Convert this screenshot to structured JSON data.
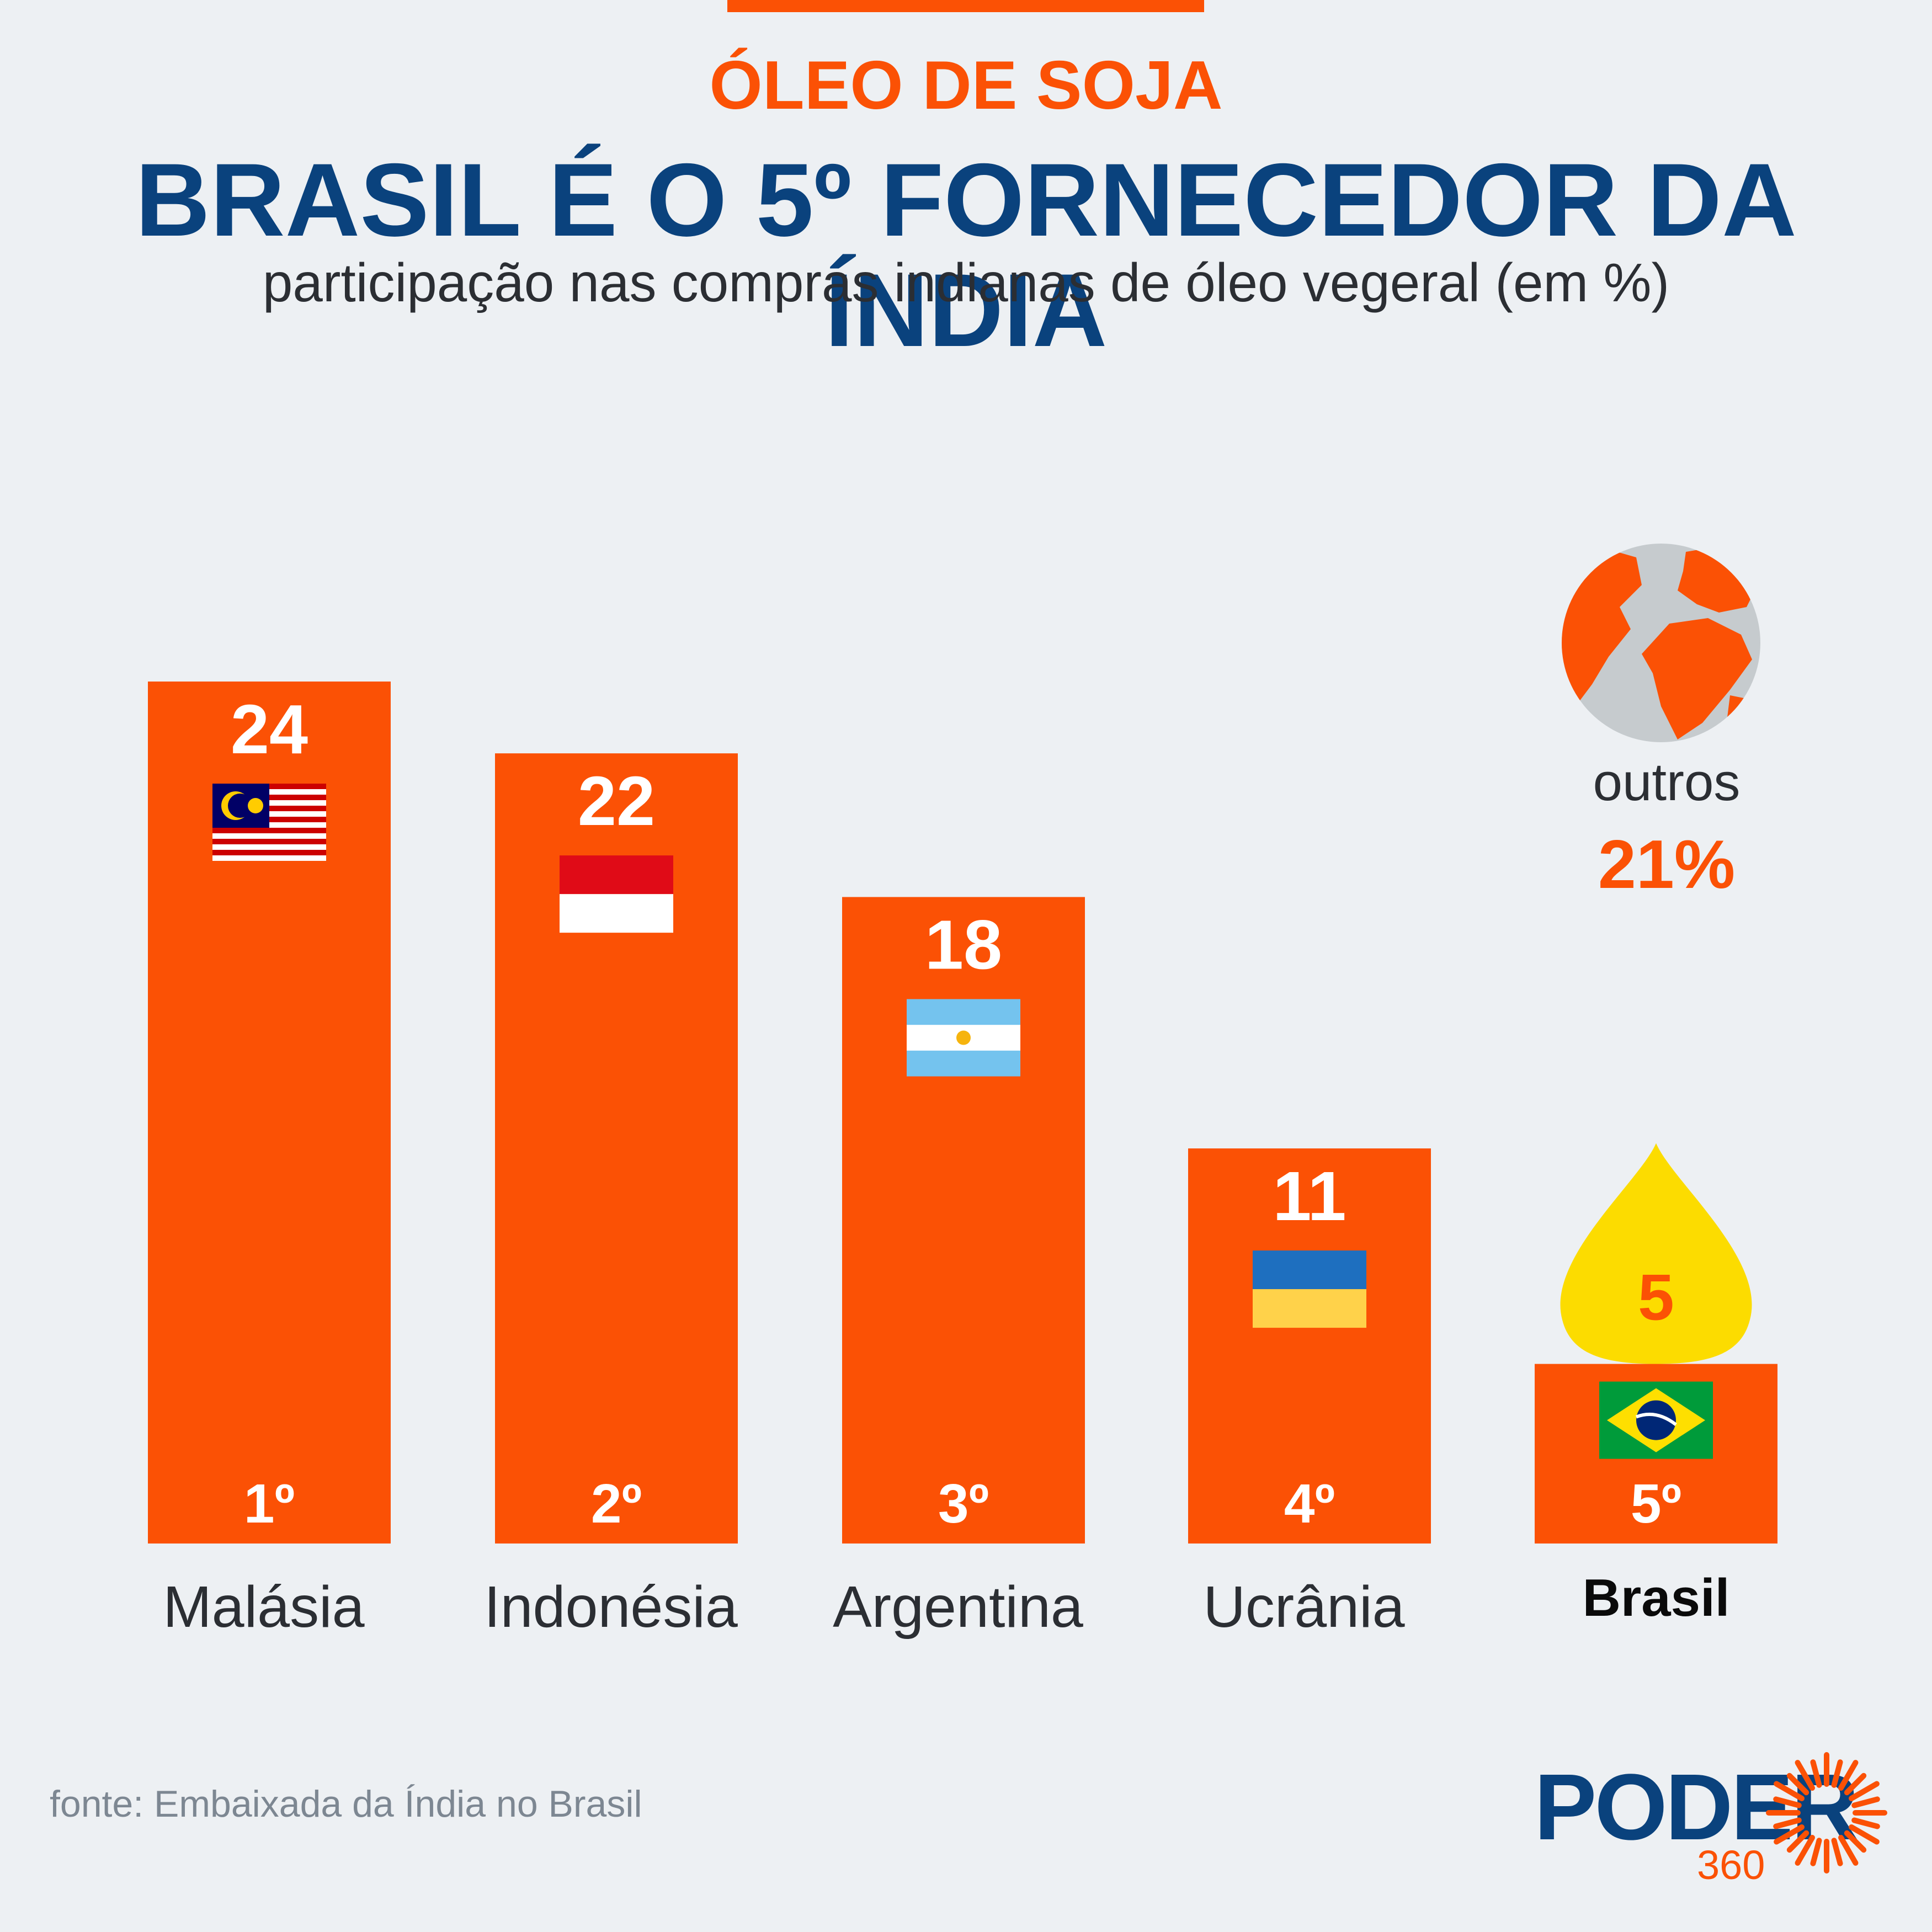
{
  "header": {
    "kicker": "ÓLEO DE SOJA",
    "title": "BRASIL É O 5º FORNECEDOR DA ÍNDIA",
    "subtitle": "participação nas compras indianas de óleo vegeral (em %)"
  },
  "others": {
    "label": "outros",
    "value": "21%"
  },
  "footer": {
    "source": "fonte: Embaixada da Índia no Brasil"
  },
  "logo": {
    "text": "PODER",
    "sub": "360"
  },
  "colors": {
    "background": "#edf0f3",
    "bar": "#fb5105",
    "title": "#0a427d",
    "text": "#2b2e33",
    "drop": "#fcdc00",
    "globe": "#c6cbce"
  },
  "chart_data": {
    "type": "bar",
    "categories": [
      "Malásia",
      "Indonésia",
      "Argentina",
      "Ucrânia",
      "Brasil"
    ],
    "values": [
      24,
      22,
      18,
      11,
      5
    ],
    "value_labels": [
      "24",
      "22",
      "18",
      "11",
      "5"
    ],
    "rank_labels": [
      "1º",
      "2º",
      "3º",
      "4º",
      "5º"
    ],
    "flags": [
      "malaysia-flag-icon",
      "indonesia-flag-icon",
      "argentina-flag-icon",
      "ukraine-flag-icon",
      "brazil-flag-icon"
    ],
    "highlight": "Brasil",
    "ylim": [
      0,
      24
    ],
    "grid": false,
    "legend": "none"
  }
}
